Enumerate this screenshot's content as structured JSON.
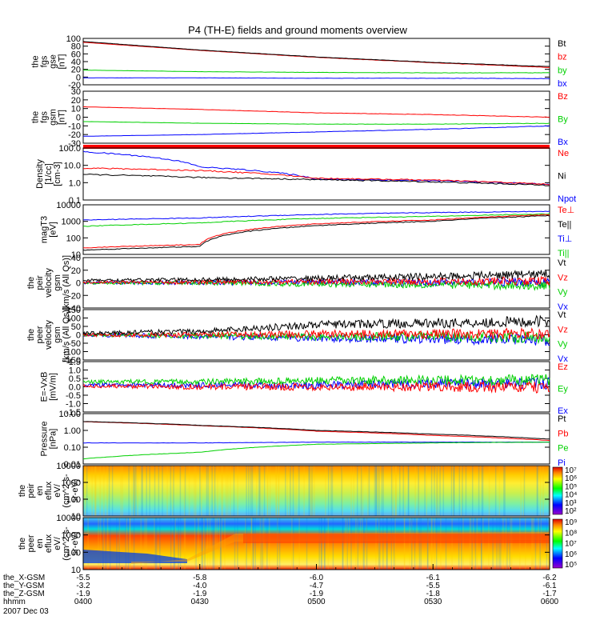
{
  "title": "P4 (TH-E) fields and ground moments overview",
  "colors": {
    "black": "#000000",
    "red": "#ff0000",
    "green": "#00d000",
    "blue": "#0000ff",
    "frame": "#000000"
  },
  "panels": [
    {
      "ylabel": [
        "the",
        "fgs",
        "gse",
        "[nT]"
      ],
      "ticks": [
        "100",
        "80",
        "60",
        "40",
        "20",
        "0",
        "-20"
      ],
      "yrange": [
        -20,
        100
      ],
      "log": false,
      "legend": [
        {
          "text": "Bt",
          "color": "#000000"
        },
        {
          "text": "bz",
          "color": "#ff0000"
        },
        {
          "text": "by",
          "color": "#00d000"
        },
        {
          "text": "bx",
          "color": "#0000ff"
        }
      ]
    },
    {
      "ylabel": [
        "the",
        "fgs",
        "gsm",
        "[nT]"
      ],
      "ticks": [
        "30",
        "20",
        "10",
        "0",
        "-10",
        "-20",
        "-30"
      ],
      "yrange": [
        -30,
        30
      ],
      "log": false,
      "legend": [
        {
          "text": "Bz",
          "color": "#ff0000"
        },
        {
          "text": "By",
          "color": "#00d000"
        },
        {
          "text": "Bx",
          "color": "#0000ff"
        }
      ]
    },
    {
      "ylabel": [
        "Density",
        "[1/cc]",
        "[cm-3]"
      ],
      "ticks": [
        "100.0",
        "10.0",
        "1.0",
        "0.1"
      ],
      "yrange": [
        0.1,
        100
      ],
      "log": true,
      "legend": [
        {
          "text": "Ne",
          "color": "#ff0000"
        },
        {
          "text": "Ni",
          "color": "#000000"
        },
        {
          "text": "Npot",
          "color": "#0000ff"
        }
      ]
    },
    {
      "ylabel": [
        "magT3",
        "[eV]"
      ],
      "ticks": [
        "10000",
        "1000",
        "100",
        "10"
      ],
      "yrange": [
        10,
        10000
      ],
      "log": true,
      "legend": [
        {
          "text": "Te⊥",
          "color": "#ff0000"
        },
        {
          "text": "Te||",
          "color": "#000000"
        },
        {
          "text": "Ti⊥",
          "color": "#0000ff"
        },
        {
          "text": "Ti||",
          "color": "#00d000"
        }
      ]
    },
    {
      "ylabel": [
        "the",
        "peir",
        "velocity",
        "gsm",
        "[km/s (All Qs)]"
      ],
      "ticks": [
        "40",
        "20",
        "0",
        "-20",
        "-40"
      ],
      "yrange": [
        -40,
        40
      ],
      "log": false,
      "legend": [
        {
          "text": "Vt",
          "color": "#000000"
        },
        {
          "text": "Vz",
          "color": "#ff0000"
        },
        {
          "text": "Vy",
          "color": "#00d000"
        },
        {
          "text": "Vx",
          "color": "#0000ff"
        }
      ]
    },
    {
      "ylabel": [
        "the",
        "peer",
        "velocity",
        "gsm",
        "[km/s (All Qs)]"
      ],
      "ticks": [
        "150",
        "100",
        "50",
        "0",
        "-50",
        "-100",
        "-150"
      ],
      "yrange": [
        -150,
        150
      ],
      "log": false,
      "legend": [
        {
          "text": "Vt",
          "color": "#000000"
        },
        {
          "text": "Vz",
          "color": "#ff0000"
        },
        {
          "text": "Vy",
          "color": "#00d000"
        },
        {
          "text": "Vx",
          "color": "#0000ff"
        }
      ]
    },
    {
      "ylabel": [
        "E=-VxB",
        "[mV/m]"
      ],
      "ticks": [
        "1.5",
        "1.0",
        "0.5",
        "0.0",
        "-0.5",
        "-1.0",
        "-1.5"
      ],
      "yrange": [
        -1.5,
        1.5
      ],
      "log": false,
      "legend": [
        {
          "text": "Ez",
          "color": "#ff0000"
        },
        {
          "text": "Ey",
          "color": "#00d000"
        },
        {
          "text": "Ex",
          "color": "#0000ff"
        }
      ]
    },
    {
      "ylabel": [
        "Pressure",
        "[nPa]"
      ],
      "ticks": [
        "10.00",
        "1.00",
        "0.10",
        "0.01"
      ],
      "yrange": [
        0.01,
        10
      ],
      "log": true,
      "legend": [
        {
          "text": "Pt",
          "color": "#000000"
        },
        {
          "text": "Pb",
          "color": "#ff0000"
        },
        {
          "text": "Pe",
          "color": "#00d000"
        },
        {
          "text": "Pi",
          "color": "#0000ff"
        }
      ]
    },
    {
      "ylabel": [
        "the",
        "peir",
        "en",
        "eflux",
        "eV/",
        "(cm^2-s-",
        "sr-eV)"
      ],
      "ticks": [
        "10000",
        "1000",
        "100",
        "10"
      ],
      "yrange": [
        10,
        20000
      ],
      "log": true,
      "colorbar": [
        "10⁷",
        "10⁶",
        "10⁵",
        "10⁴",
        "10³",
        "10²"
      ]
    },
    {
      "ylabel": [
        "the",
        "peer",
        "en",
        "eflux",
        "eV/",
        "(cm^2-s-",
        "sr-eV)"
      ],
      "ticks": [
        "10000",
        "1000",
        "100",
        "10"
      ],
      "yrange": [
        10,
        20000
      ],
      "log": true,
      "colorbar": [
        "10⁹",
        "10⁸",
        "10⁷",
        "10⁶",
        "10⁵"
      ]
    }
  ],
  "xaxis": {
    "rows": [
      {
        "label": "the_X-GSM",
        "values": [
          "-5.5",
          "-5.8",
          "-6.0",
          "-6.1",
          "-6.2"
        ]
      },
      {
        "label": "the_Y-GSM",
        "values": [
          "-3.2",
          "-4.0",
          "-4.7",
          "-5.5",
          "-6.1"
        ]
      },
      {
        "label": "the_Z-GSM",
        "values": [
          "-1.9",
          "-1.9",
          "-1.9",
          "-1.8",
          "-1.7"
        ]
      },
      {
        "label": "hhmm",
        "values": [
          "0400",
          "0430",
          "0500",
          "0530",
          "0600"
        ]
      }
    ],
    "date": "2007 Dec 03"
  },
  "chart_data": {
    "type": "line",
    "title": "P4 (TH-E) fields and ground moments overview",
    "x_time": [
      "0400",
      "0430",
      "0500",
      "0530",
      "0600"
    ],
    "panels": [
      {
        "name": "the fgs gse",
        "ylim": [
          -20,
          100
        ],
        "series": [
          {
            "name": "Bt",
            "x": [
              "0400",
              "0430",
              "0500",
              "0530",
              "0600"
            ],
            "y": [
              92,
              70,
              52,
              38,
              27
            ]
          },
          {
            "name": "bz",
            "x": [
              "0400",
              "0430",
              "0500",
              "0530",
              "0600"
            ],
            "y": [
              90,
              69,
              51,
              37,
              25
            ]
          },
          {
            "name": "by",
            "x": [
              "0400",
              "0430",
              "0500",
              "0530",
              "0600"
            ],
            "y": [
              18,
              14,
              12,
              11,
              11
            ]
          },
          {
            "name": "bx",
            "x": [
              "0400",
              "0430",
              "0500",
              "0530",
              "0600"
            ],
            "y": [
              -2,
              -2,
              -3,
              -3,
              -4
            ]
          }
        ]
      },
      {
        "name": "the fgs gsm",
        "ylim": [
          -30,
          30
        ],
        "series": [
          {
            "name": "Bz",
            "x": [
              "0400",
              "0430",
              "0500",
              "0530",
              "0600"
            ],
            "y": [
              12,
              9,
              5,
              3,
              0
            ]
          },
          {
            "name": "By",
            "x": [
              "0400",
              "0430",
              "0500",
              "0530",
              "0600"
            ],
            "y": [
              -5,
              -7,
              -8,
              -8,
              -7
            ]
          },
          {
            "name": "Bx",
            "x": [
              "0400",
              "0430",
              "0500",
              "0530",
              "0600"
            ],
            "y": [
              -22,
              -20,
              -17,
              -14,
              -10
            ]
          }
        ]
      },
      {
        "name": "Density",
        "ylim": [
          0.1,
          100
        ],
        "series": [
          {
            "name": "Ne",
            "x": [
              "0400",
              "0430",
              "0500",
              "0530",
              "0600"
            ],
            "y": [
              7,
              5,
              1.8,
              1.4,
              0.8
            ]
          },
          {
            "name": "Ni",
            "x": [
              "0400",
              "0430",
              "0500",
              "0530",
              "0600"
            ],
            "y": [
              3,
              2,
              1.5,
              1.1,
              0.7
            ]
          },
          {
            "name": "Npot",
            "x": [
              "0400",
              "0430",
              "0500",
              "0530",
              "0600"
            ],
            "y": [
              60,
              8,
              1.6,
              1.3,
              0.8
            ]
          }
        ]
      },
      {
        "name": "magT3",
        "ylim": [
          10,
          10000
        ],
        "series": [
          {
            "name": "Te⊥",
            "x": [
              "0400",
              "0430",
              "0500",
              "0530",
              "0600"
            ],
            "y": [
              25,
              40,
              700,
              1200,
              2500
            ]
          },
          {
            "name": "Te||",
            "x": [
              "0400",
              "0430",
              "0500",
              "0530",
              "0600"
            ],
            "y": [
              18,
              30,
              550,
              1000,
              2200
            ]
          },
          {
            "name": "Ti⊥",
            "x": [
              "0400",
              "0430",
              "0500",
              "0530",
              "0600"
            ],
            "y": [
              1200,
              1600,
              2600,
              3400,
              4000
            ]
          },
          {
            "name": "Ti||",
            "x": [
              "0400",
              "0430",
              "0500",
              "0530",
              "0600"
            ],
            "y": [
              500,
              800,
              1500,
              2000,
              2800
            ]
          }
        ]
      },
      {
        "name": "the peir velocity gsm",
        "ylim": [
          -40,
          40
        ],
        "series": [
          {
            "name": "Vt",
            "x": [
              "0400",
              "0430",
              "0500",
              "0530",
              "0600"
            ],
            "y": [
              4,
              5,
              7,
              10,
              14
            ]
          },
          {
            "name": "Vz",
            "x": [
              "0400",
              "0430",
              "0500",
              "0530",
              "0600"
            ],
            "y": [
              1,
              1,
              2,
              2,
              3
            ]
          },
          {
            "name": "Vy",
            "x": [
              "0400",
              "0430",
              "0500",
              "0530",
              "0600"
            ],
            "y": [
              -1,
              0,
              -2,
              -3,
              -5
            ]
          },
          {
            "name": "Vx",
            "x": [
              "0400",
              "0430",
              "0500",
              "0530",
              "0600"
            ],
            "y": [
              0,
              0,
              1,
              0,
              1
            ]
          }
        ]
      },
      {
        "name": "the peer velocity gsm",
        "ylim": [
          -150,
          150
        ],
        "series": [
          {
            "name": "Vt",
            "x": [
              "0400",
              "0430",
              "0500",
              "0530",
              "0600"
            ],
            "y": [
              10,
              20,
              60,
              70,
              80
            ]
          },
          {
            "name": "Vz",
            "x": [
              "0400",
              "0430",
              "0500",
              "0530",
              "0600"
            ],
            "y": [
              0,
              0,
              5,
              5,
              5
            ]
          },
          {
            "name": "Vy",
            "x": [
              "0400",
              "0430",
              "0500",
              "0530",
              "0600"
            ],
            "y": [
              0,
              -5,
              -10,
              -10,
              -15
            ]
          },
          {
            "name": "Vx",
            "x": [
              "0400",
              "0430",
              "0500",
              "0530",
              "0600"
            ],
            "y": [
              0,
              -10,
              -20,
              -25,
              -30
            ]
          }
        ]
      },
      {
        "name": "E=-VxB",
        "ylim": [
          -1.5,
          1.5
        ],
        "series": [
          {
            "name": "Ez",
            "x": [
              "0400",
              "0430",
              "0500",
              "0530",
              "0600"
            ],
            "y": [
              0.05,
              0.0,
              0.0,
              0.0,
              -0.05
            ]
          },
          {
            "name": "Ey",
            "x": [
              "0400",
              "0430",
              "0500",
              "0530",
              "0600"
            ],
            "y": [
              0.3,
              0.3,
              0.35,
              0.4,
              0.4
            ]
          },
          {
            "name": "Ex",
            "x": [
              "0400",
              "0430",
              "0500",
              "0530",
              "0600"
            ],
            "y": [
              0.1,
              0.1,
              0.1,
              0.2,
              0.2
            ]
          }
        ]
      },
      {
        "name": "Pressure",
        "ylim": [
          0.01,
          10
        ],
        "series": [
          {
            "name": "Pt",
            "x": [
              "0400",
              "0430",
              "0500",
              "0530",
              "0600"
            ],
            "y": [
              3.4,
              2.0,
              1.0,
              0.6,
              0.3
            ]
          },
          {
            "name": "Pb",
            "x": [
              "0400",
              "0430",
              "0500",
              "0530",
              "0600"
            ],
            "y": [
              3.3,
              1.9,
              0.9,
              0.5,
              0.25
            ]
          },
          {
            "name": "Pe",
            "x": [
              "0400",
              "0430",
              "0500",
              "0530",
              "0600"
            ],
            "y": [
              0.02,
              0.05,
              0.15,
              0.18,
              0.2
            ]
          },
          {
            "name": "Pi",
            "x": [
              "0400",
              "0430",
              "0500",
              "0530",
              "0600"
            ],
            "y": [
              0.18,
              0.18,
              0.2,
              0.2,
              0.2
            ]
          }
        ]
      }
    ]
  }
}
